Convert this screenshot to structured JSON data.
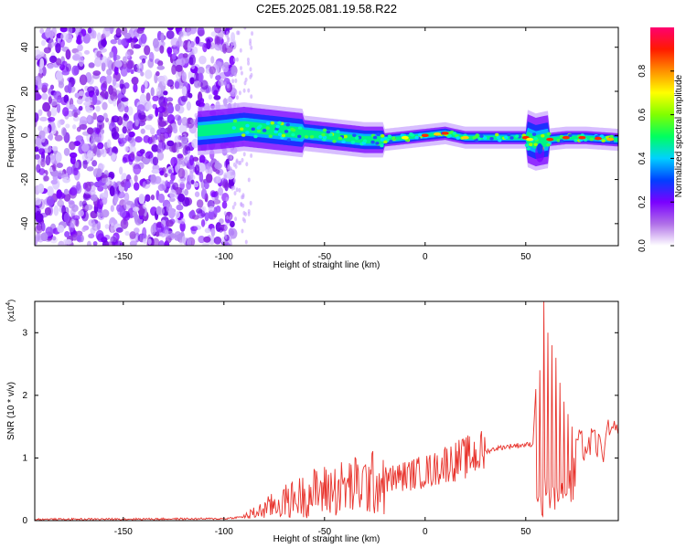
{
  "title": "C2E5.2025.081.19.58.R22",
  "chart_data": [
    {
      "type": "heatmap",
      "xlabel": "Height of straight line (km)",
      "ylabel": "Frequency (Hz)",
      "xlim": [
        -194,
        96
      ],
      "ylim": [
        -50,
        49
      ],
      "xticks": [
        -150,
        -100,
        -50,
        0,
        50
      ],
      "yticks": [
        -40,
        -20,
        0,
        20,
        40
      ],
      "colorbar": {
        "label": "Normalized spectral amplitude",
        "range": [
          0,
          1
        ],
        "ticks": [
          0.0,
          0.2,
          0.4,
          0.6,
          0.8
        ]
      },
      "ridge": {
        "x": [
          -112,
          -100,
          -90,
          -80,
          -70,
          -60,
          -50,
          -40,
          -30,
          -20,
          -10,
          0,
          10,
          20,
          30,
          40,
          50,
          55,
          60,
          70,
          80,
          96
        ],
        "y": [
          2,
          3,
          4,
          3,
          2,
          1,
          0,
          -1,
          -2,
          -2,
          -1,
          0,
          1,
          -1,
          -1,
          -1,
          -1,
          -3,
          -2,
          -1,
          -1,
          -2
        ]
      }
    },
    {
      "type": "line",
      "xlabel": "Height of straight line (km)",
      "ylabel": "SNR (10 * v/v)",
      "y_multiplier": "(x10",
      "y_multiplier_exp": "4",
      "y_multiplier_close": ")",
      "xlim": [
        -194,
        96
      ],
      "ylim": [
        0,
        3.5
      ],
      "xticks": [
        -150,
        -100,
        -50,
        0,
        50
      ],
      "yticks": [
        0,
        1,
        2,
        3
      ],
      "color": "#e8332c",
      "envelope": {
        "x": [
          -194,
          -100,
          -90,
          -82,
          -75,
          -65,
          -55,
          -45,
          -35,
          -25,
          -15,
          -5,
          5,
          10,
          15,
          20,
          25,
          30,
          35,
          40,
          45,
          50,
          53
        ],
        "y": [
          0.02,
          0.03,
          0.06,
          0.15,
          0.25,
          0.35,
          0.45,
          0.5,
          0.55,
          0.6,
          0.68,
          0.75,
          0.82,
          0.92,
          0.95,
          1.0,
          1.05,
          1.1,
          1.15,
          1.18,
          1.2,
          1.21,
          1.22
        ]
      },
      "spikes": {
        "x": [
          55,
          56,
          57,
          58,
          59,
          60,
          61,
          62,
          63,
          64,
          65,
          66,
          67,
          68,
          69,
          70,
          71,
          72,
          73,
          74,
          75
        ],
        "y": [
          2.1,
          0.3,
          2.4,
          0.1,
          3.5,
          0.4,
          3.0,
          0.2,
          2.8,
          0.5,
          2.6,
          0.3,
          2.2,
          0.6,
          1.9,
          0.4,
          1.7,
          0.8,
          1.5,
          1.0,
          1.3
        ]
      },
      "tail": {
        "x": [
          76,
          80,
          84,
          88,
          92,
          96
        ],
        "y": [
          1.25,
          1.15,
          1.28,
          1.1,
          1.45,
          1.3
        ]
      }
    }
  ]
}
